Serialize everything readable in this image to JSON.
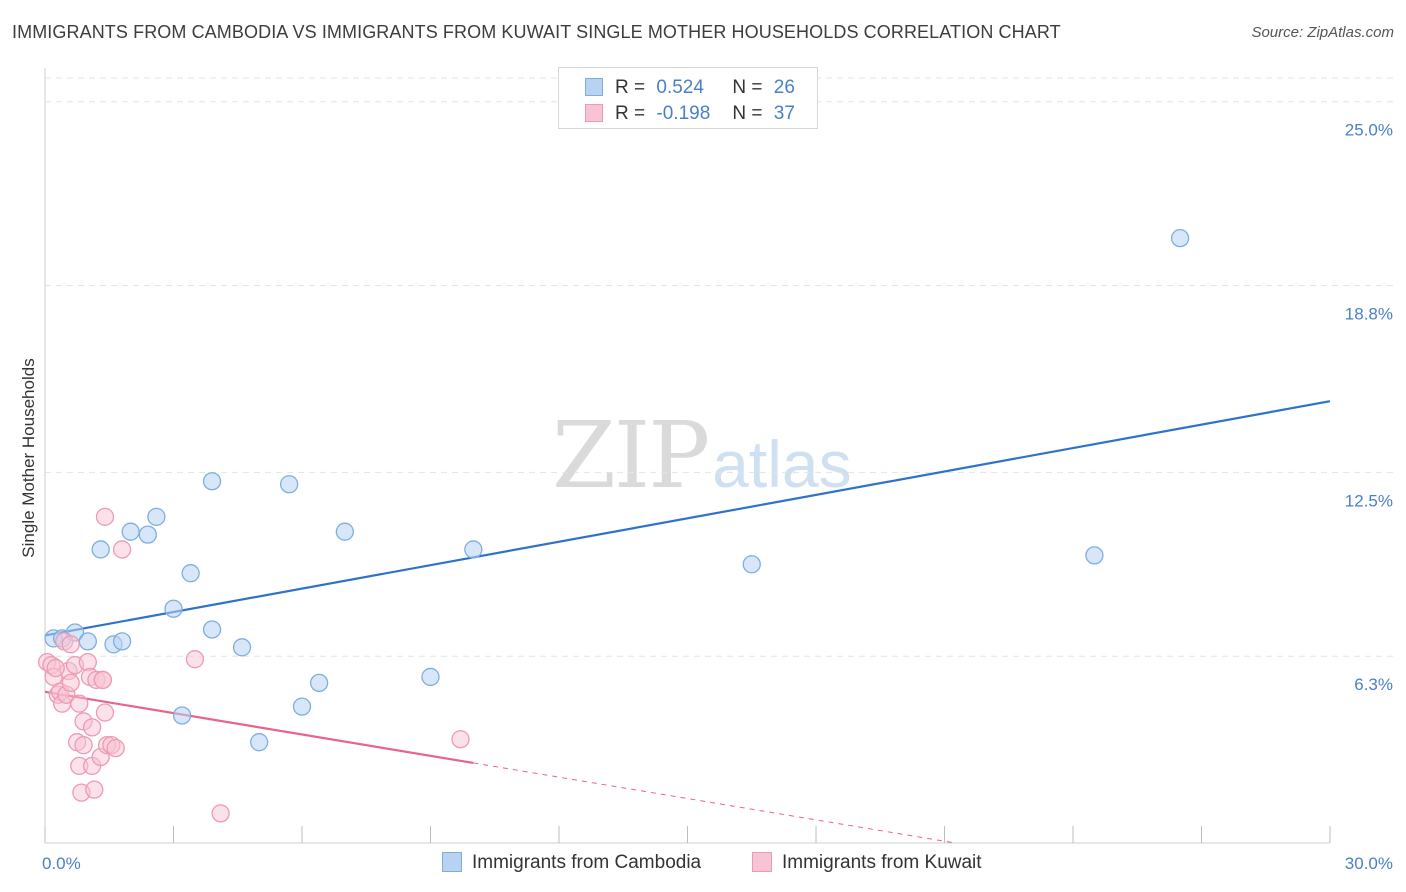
{
  "header": {
    "title": "IMMIGRANTS FROM CAMBODIA VS IMMIGRANTS FROM KUWAIT SINGLE MOTHER HOUSEHOLDS CORRELATION CHART",
    "source": "Source: ZipAtlas.com"
  },
  "legend": {
    "cambodia": {
      "r_label": "R =",
      "r_value": "0.524",
      "n_label": "N =",
      "n_value": "26"
    },
    "kuwait": {
      "r_label": "R =",
      "r_value": "-0.198",
      "n_label": "N =",
      "n_value": "37"
    }
  },
  "watermark": {
    "zip": "ZIP",
    "atlas": "atlas"
  },
  "colors": {
    "cambodia_fill": "#b8d3f2",
    "cambodia_stroke": "#7eaee0",
    "cambodia_line": "#2f72c8",
    "kuwait_fill": "#f8c3d4",
    "kuwait_stroke": "#ee9ab4",
    "kuwait_line": "#e8638e",
    "tick_text": "#4a7fc9",
    "grid": "#e3e3e3"
  },
  "chart_data": {
    "type": "scatter",
    "title": "IMMIGRANTS FROM CAMBODIA VS IMMIGRANTS FROM KUWAIT SINGLE MOTHER HOUSEHOLDS CORRELATION CHART",
    "xlabel": "",
    "ylabel": "Single Mother Households",
    "xlim": [
      0,
      30
    ],
    "ylim": [
      0,
      25.8
    ],
    "x_tick_labels": [
      "0.0%",
      "30.0%"
    ],
    "y_ticks": [
      6.3,
      12.5,
      18.8,
      25.0
    ],
    "y_tick_labels": [
      "6.3%",
      "12.5%",
      "18.8%",
      "25.0%"
    ],
    "series": [
      {
        "name": "Immigrants from Cambodia",
        "points": [
          [
            0.2,
            6.9
          ],
          [
            0.4,
            6.9
          ],
          [
            0.7,
            7.1
          ],
          [
            1.0,
            6.8
          ],
          [
            1.3,
            9.9
          ],
          [
            1.6,
            6.7
          ],
          [
            1.8,
            6.8
          ],
          [
            2.0,
            10.5
          ],
          [
            2.4,
            10.4
          ],
          [
            2.6,
            11.0
          ],
          [
            3.0,
            7.9
          ],
          [
            3.2,
            4.3
          ],
          [
            3.4,
            9.1
          ],
          [
            3.9,
            7.2
          ],
          [
            3.9,
            12.2
          ],
          [
            4.6,
            6.6
          ],
          [
            5.0,
            3.4
          ],
          [
            5.7,
            12.1
          ],
          [
            6.0,
            4.6
          ],
          [
            6.4,
            5.4
          ],
          [
            7.0,
            10.5
          ],
          [
            9.0,
            5.6
          ],
          [
            10.0,
            9.9
          ],
          [
            16.5,
            9.4
          ],
          [
            24.5,
            9.7
          ],
          [
            26.5,
            20.4
          ]
        ],
        "trend": {
          "x0": 0,
          "y0": 7.0,
          "x1": 30,
          "y1": 14.9
        }
      },
      {
        "name": "Immigrants from Kuwait",
        "points": [
          [
            0.05,
            6.1
          ],
          [
            0.15,
            6.0
          ],
          [
            0.2,
            5.6
          ],
          [
            0.3,
            5.0
          ],
          [
            0.35,
            5.1
          ],
          [
            0.4,
            4.7
          ],
          [
            0.45,
            6.8
          ],
          [
            0.5,
            5.0
          ],
          [
            0.55,
            5.8
          ],
          [
            0.6,
            6.7
          ],
          [
            0.6,
            5.4
          ],
          [
            0.7,
            6.0
          ],
          [
            0.75,
            3.4
          ],
          [
            0.8,
            4.7
          ],
          [
            0.8,
            2.6
          ],
          [
            0.85,
            1.7
          ],
          [
            0.9,
            4.1
          ],
          [
            0.9,
            3.3
          ],
          [
            1.0,
            6.1
          ],
          [
            1.05,
            5.6
          ],
          [
            1.1,
            3.9
          ],
          [
            1.1,
            2.6
          ],
          [
            1.15,
            1.8
          ],
          [
            1.2,
            5.5
          ],
          [
            1.3,
            2.9
          ],
          [
            1.35,
            5.5
          ],
          [
            1.35,
            5.5
          ],
          [
            1.4,
            4.4
          ],
          [
            1.4,
            11.0
          ],
          [
            1.45,
            3.3
          ],
          [
            1.55,
            3.3
          ],
          [
            1.65,
            3.2
          ],
          [
            1.8,
            9.9
          ],
          [
            3.5,
            6.2
          ],
          [
            4.1,
            1.0
          ],
          [
            9.7,
            3.5
          ],
          [
            0.25,
            5.9
          ]
        ],
        "trend": {
          "x0": 0,
          "y0": 5.1,
          "x1": 10,
          "y1": 2.7
        },
        "trend_dashed": {
          "x0": 10,
          "y0": 2.7,
          "x1": 30,
          "y1": -2.1
        }
      }
    ]
  }
}
